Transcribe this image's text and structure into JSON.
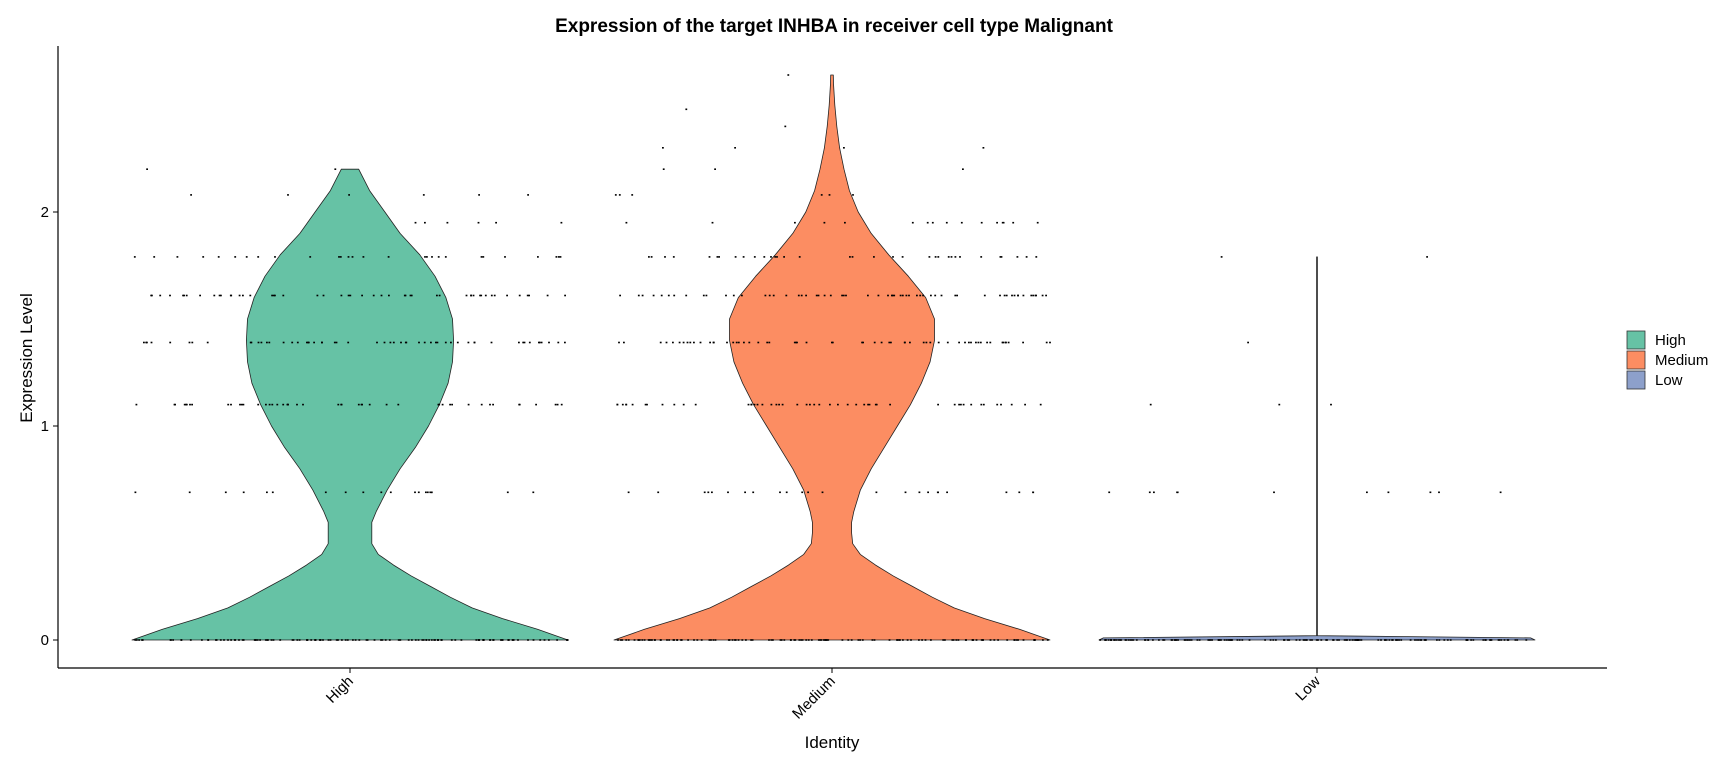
{
  "chart_data": {
    "type": "violin",
    "title": "Expression of the target INHBA in receiver cell type Malignant",
    "xlabel": "Identity",
    "ylabel": "Expression Level",
    "ylim": [
      -0.13,
      2.78
    ],
    "yticks": [
      0,
      1,
      2
    ],
    "categories": [
      "High",
      "Medium",
      "Low"
    ],
    "legend": {
      "position": "right",
      "entries": [
        {
          "label": "High",
          "color": "#66C2A5"
        },
        {
          "label": "Medium",
          "color": "#FC8D62"
        },
        {
          "label": "Low",
          "color": "#8DA0CB"
        }
      ]
    },
    "series": [
      {
        "name": "High",
        "color": "#66C2A5",
        "max": 2.2,
        "profile": [
          [
            0,
            1.0
          ],
          [
            0.05,
            0.86
          ],
          [
            0.1,
            0.7
          ],
          [
            0.15,
            0.56
          ],
          [
            0.2,
            0.46
          ],
          [
            0.25,
            0.37
          ],
          [
            0.3,
            0.28
          ],
          [
            0.35,
            0.2
          ],
          [
            0.4,
            0.13
          ],
          [
            0.45,
            0.1
          ],
          [
            0.5,
            0.1
          ],
          [
            0.55,
            0.1
          ],
          [
            0.6,
            0.12
          ],
          [
            0.7,
            0.17
          ],
          [
            0.8,
            0.23
          ],
          [
            0.9,
            0.3
          ],
          [
            1.0,
            0.36
          ],
          [
            1.1,
            0.41
          ],
          [
            1.2,
            0.45
          ],
          [
            1.3,
            0.47
          ],
          [
            1.4,
            0.475
          ],
          [
            1.5,
            0.47
          ],
          [
            1.6,
            0.44
          ],
          [
            1.7,
            0.39
          ],
          [
            1.8,
            0.32
          ],
          [
            1.9,
            0.23
          ],
          [
            2.0,
            0.16
          ],
          [
            2.1,
            0.09
          ],
          [
            2.2,
            0.04
          ]
        ],
        "dot_levels": [
          {
            "y": 0,
            "n": 120
          },
          {
            "y": 0.69,
            "n": 20
          },
          {
            "y": 1.1,
            "n": 48
          },
          {
            "y": 1.39,
            "n": 55
          },
          {
            "y": 1.61,
            "n": 50
          },
          {
            "y": 1.79,
            "n": 28
          },
          {
            "y": 1.95,
            "n": 6
          },
          {
            "y": 2.08,
            "n": 6
          },
          {
            "y": 2.2,
            "n": 2
          }
        ]
      },
      {
        "name": "Medium",
        "color": "#FC8D62",
        "max": 2.64,
        "profile": [
          [
            0,
            1.0
          ],
          [
            0.05,
            0.86
          ],
          [
            0.1,
            0.7
          ],
          [
            0.15,
            0.56
          ],
          [
            0.2,
            0.46
          ],
          [
            0.25,
            0.37
          ],
          [
            0.3,
            0.28
          ],
          [
            0.35,
            0.2
          ],
          [
            0.4,
            0.13
          ],
          [
            0.45,
            0.095
          ],
          [
            0.5,
            0.09
          ],
          [
            0.55,
            0.09
          ],
          [
            0.6,
            0.1
          ],
          [
            0.7,
            0.13
          ],
          [
            0.8,
            0.18
          ],
          [
            0.9,
            0.24
          ],
          [
            1.0,
            0.3
          ],
          [
            1.1,
            0.36
          ],
          [
            1.2,
            0.41
          ],
          [
            1.3,
            0.45
          ],
          [
            1.4,
            0.47
          ],
          [
            1.5,
            0.47
          ],
          [
            1.6,
            0.43
          ],
          [
            1.7,
            0.35
          ],
          [
            1.8,
            0.26
          ],
          [
            1.9,
            0.18
          ],
          [
            2.0,
            0.12
          ],
          [
            2.1,
            0.08
          ],
          [
            2.2,
            0.055
          ],
          [
            2.3,
            0.035
          ],
          [
            2.4,
            0.022
          ],
          [
            2.5,
            0.013
          ],
          [
            2.6,
            0.007
          ],
          [
            2.64,
            0.006
          ]
        ],
        "dot_levels": [
          {
            "y": 0,
            "n": 120
          },
          {
            "y": 0.69,
            "n": 24
          },
          {
            "y": 1.1,
            "n": 50
          },
          {
            "y": 1.39,
            "n": 60
          },
          {
            "y": 1.61,
            "n": 60
          },
          {
            "y": 1.79,
            "n": 34
          },
          {
            "y": 1.95,
            "n": 16
          },
          {
            "y": 2.08,
            "n": 6
          },
          {
            "y": 2.2,
            "n": 3
          },
          {
            "y": 2.3,
            "n": 4
          },
          {
            "y": 2.4,
            "n": 1
          },
          {
            "y": 2.48,
            "n": 1
          },
          {
            "y": 2.64,
            "n": 1
          }
        ]
      },
      {
        "name": "Low",
        "color": "#8DA0CB",
        "max": 1.79,
        "profile": [
          [
            0,
            1.0
          ],
          [
            0.01,
            0.98
          ],
          [
            0.02,
            0.002
          ],
          [
            1.79,
            0.002
          ]
        ],
        "dot_levels": [
          {
            "y": 0,
            "n": 150
          },
          {
            "y": 0.69,
            "n": 11
          },
          {
            "y": 1.1,
            "n": 3
          },
          {
            "y": 1.39,
            "n": 1
          },
          {
            "y": 1.79,
            "n": 2
          }
        ]
      }
    ]
  }
}
